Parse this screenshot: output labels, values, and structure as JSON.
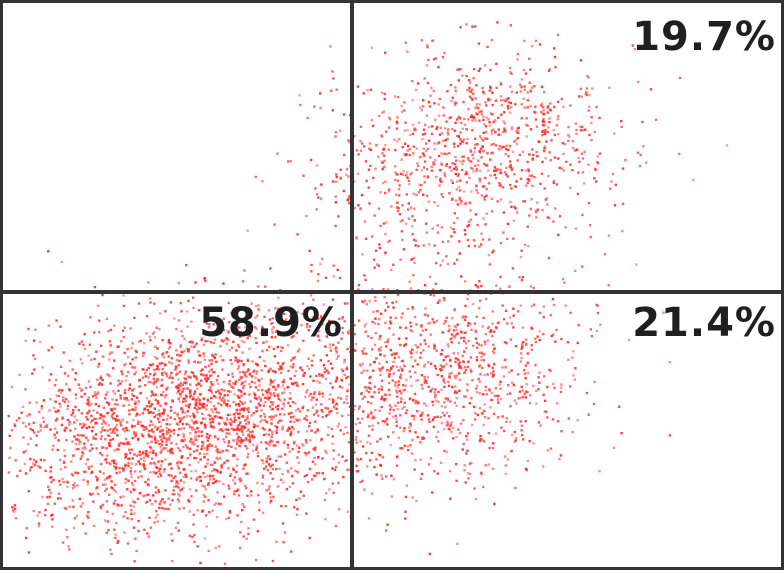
{
  "chart_data": {
    "type": "scatter",
    "title": "",
    "xlabel": "",
    "ylabel": "",
    "grid": false,
    "legend": "none",
    "point_color": "#ff2a2a",
    "gate_color": "#333333",
    "quadrants": [
      {
        "position": "upper-left",
        "percent": null,
        "label": ""
      },
      {
        "position": "upper-right",
        "percent": 19.7,
        "label": "19.7%"
      },
      {
        "position": "lower-left",
        "percent": 58.9,
        "label": "58.9%"
      },
      {
        "position": "lower-right",
        "percent": 21.4,
        "label": "21.4%"
      }
    ]
  }
}
